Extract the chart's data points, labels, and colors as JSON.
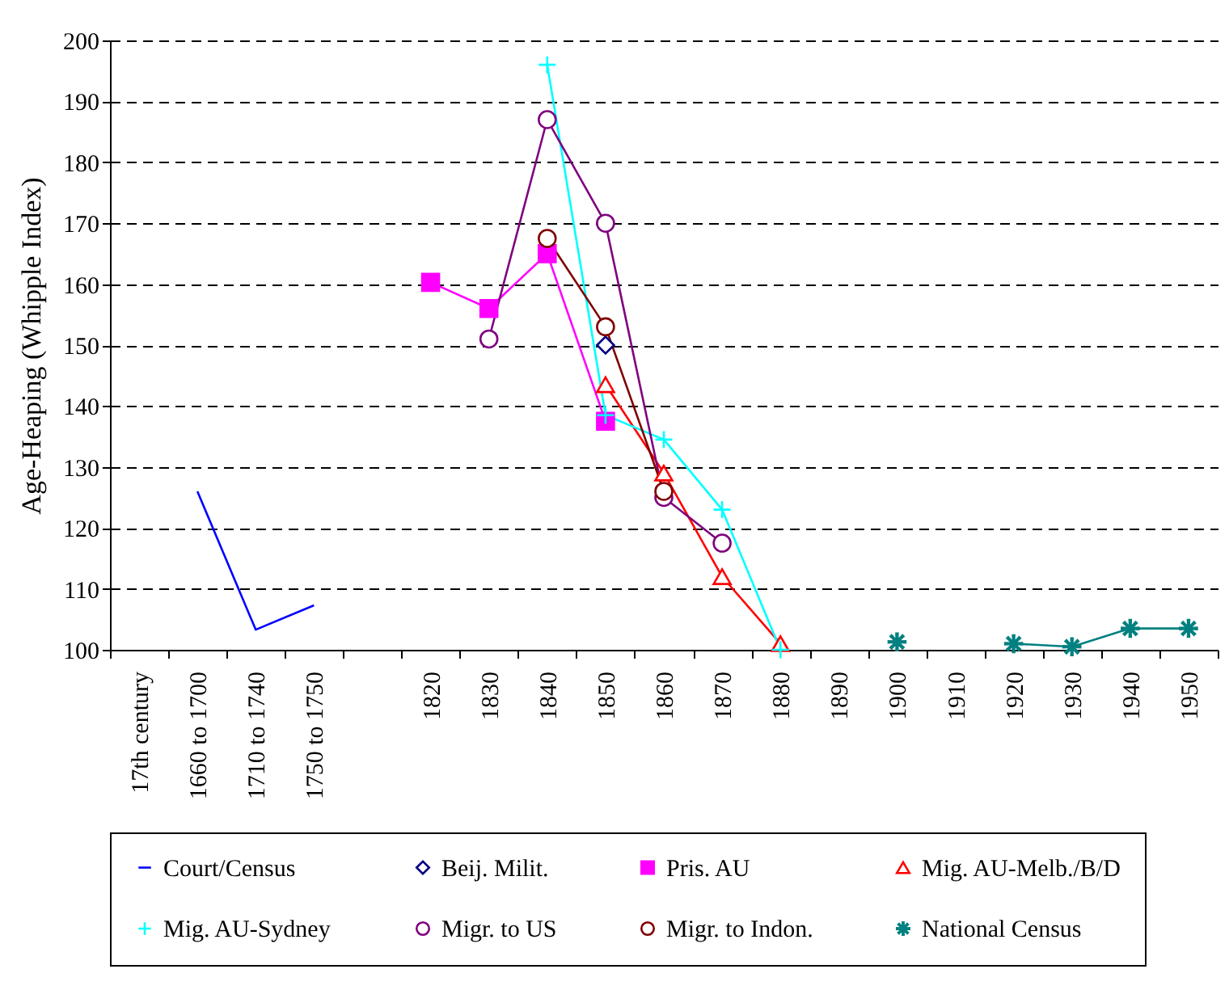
{
  "chart_data": {
    "type": "line",
    "ylabel": "Age-Heaping (Whipple Index)",
    "categories": [
      "17th century",
      "1660 to 1700",
      "1710 to 1740",
      "1750 to 1750",
      null,
      "1820",
      "1830",
      "1840",
      "1850",
      "1860",
      "1870",
      "1880",
      "1890",
      "1900",
      "1910",
      "1920",
      "1930",
      "1940",
      "1950"
    ],
    "series": [
      {
        "name": "Court/Census",
        "color": "#0000ff",
        "marker": "none",
        "values": [
          null,
          126,
          103.3,
          107.3,
          null,
          null,
          null,
          null,
          null,
          null,
          null,
          null,
          null,
          null,
          null,
          null,
          null,
          null,
          null
        ]
      },
      {
        "name": "Beij. Milit.",
        "color": "#000080",
        "marker": "diamond",
        "values": [
          null,
          null,
          null,
          null,
          null,
          null,
          null,
          null,
          150,
          null,
          null,
          null,
          null,
          null,
          null,
          null,
          null,
          null,
          null
        ]
      },
      {
        "name": "Pris. AU",
        "color": "#ff00ff",
        "marker": "square",
        "values": [
          null,
          null,
          null,
          null,
          null,
          160.3,
          156,
          165,
          137.5,
          null,
          null,
          null,
          null,
          null,
          null,
          null,
          null,
          null,
          null
        ]
      },
      {
        "name": "Mig. AU-Melb./B/D",
        "color": "#ff0000",
        "marker": "triangle",
        "values": [
          null,
          null,
          null,
          null,
          null,
          null,
          null,
          null,
          143.5,
          129,
          112,
          101,
          null,
          null,
          null,
          null,
          null,
          null,
          null
        ]
      },
      {
        "name": "Mig. AU-Sydney",
        "color": "#00ffff",
        "marker": "cross",
        "values": [
          null,
          null,
          null,
          null,
          null,
          null,
          null,
          196,
          138.5,
          134.5,
          123,
          100,
          null,
          null,
          null,
          null,
          null,
          null,
          null
        ]
      },
      {
        "name": "Migr. to US",
        "color": "#800080",
        "marker": "circle",
        "values": [
          null,
          null,
          null,
          null,
          null,
          null,
          151,
          187,
          170,
          125,
          117.5,
          null,
          null,
          null,
          null,
          null,
          null,
          null,
          null
        ]
      },
      {
        "name": "Migr. to Indon.",
        "color": "#800000",
        "marker": "circle",
        "values": [
          null,
          null,
          null,
          null,
          null,
          null,
          null,
          167.5,
          153,
          126,
          null,
          null,
          null,
          null,
          null,
          null,
          null,
          null,
          null
        ]
      },
      {
        "name": "National Census",
        "color": "#008080",
        "marker": "star",
        "values": [
          null,
          null,
          null,
          null,
          null,
          null,
          null,
          null,
          null,
          null,
          null,
          null,
          null,
          101.3,
          null,
          101,
          100.5,
          103.5,
          103.5
        ]
      }
    ],
    "ylim": [
      100,
      200
    ],
    "yticks": [
      100,
      110,
      120,
      130,
      140,
      150,
      160,
      170,
      180,
      190,
      200
    ],
    "grid": "y",
    "legend": "bottom",
    "line_style": "solid"
  }
}
